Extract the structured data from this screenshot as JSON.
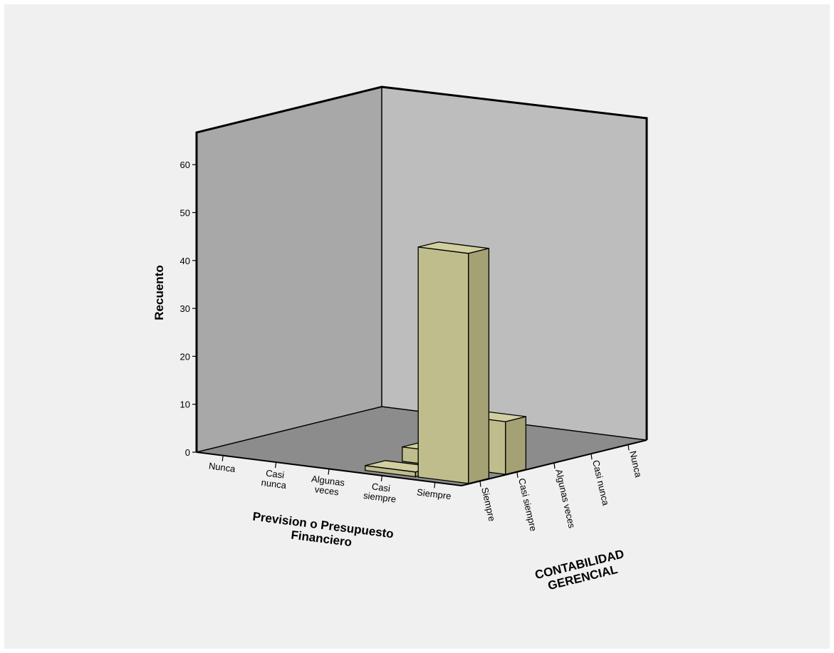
{
  "colors": {
    "background": "#f0f0f0",
    "back_wall": "#bdbdbd",
    "left_wall": "#a8a8a8",
    "floor": "#8c8c8c",
    "bar_front": "#bfbd8c",
    "bar_side": "#a4a175",
    "bar_top": "#d1cf9f",
    "edge": "#000000"
  },
  "chart_data": {
    "type": "bar",
    "subtype": "3d-grouped-bar",
    "title": "",
    "ylabel": "Recuento",
    "xlabel": "Prevision o Presupuesto Financiero",
    "zlabel": "CONTABILIDAD GERENCIAL",
    "ylim": [
      0,
      65
    ],
    "yticks": [
      0,
      10,
      20,
      30,
      40,
      50,
      60
    ],
    "grid": false,
    "x_categories": [
      "Nunca",
      "Casi nunca",
      "Algunas veces",
      "Casi siempre",
      "Siempre"
    ],
    "x_category_lines": [
      [
        "Nunca"
      ],
      [
        "Casi",
        "nunca"
      ],
      [
        "Algunas",
        "veces"
      ],
      [
        "Casi",
        "siempre"
      ],
      [
        "Siempre"
      ]
    ],
    "z_categories": [
      "Siempre",
      "Casi siempre",
      "Algunas veces",
      "Casi nunca",
      "Nunca"
    ],
    "bars": [
      {
        "x": "Casi siempre",
        "z": "Siempre",
        "value": 1
      },
      {
        "x": "Siempre",
        "z": "Siempre",
        "value": 48
      },
      {
        "x": "Siempre",
        "z": "Casi siempre",
        "value": 11
      },
      {
        "x": "Casi siempre",
        "z": "Casi siempre",
        "value": 3
      }
    ]
  }
}
